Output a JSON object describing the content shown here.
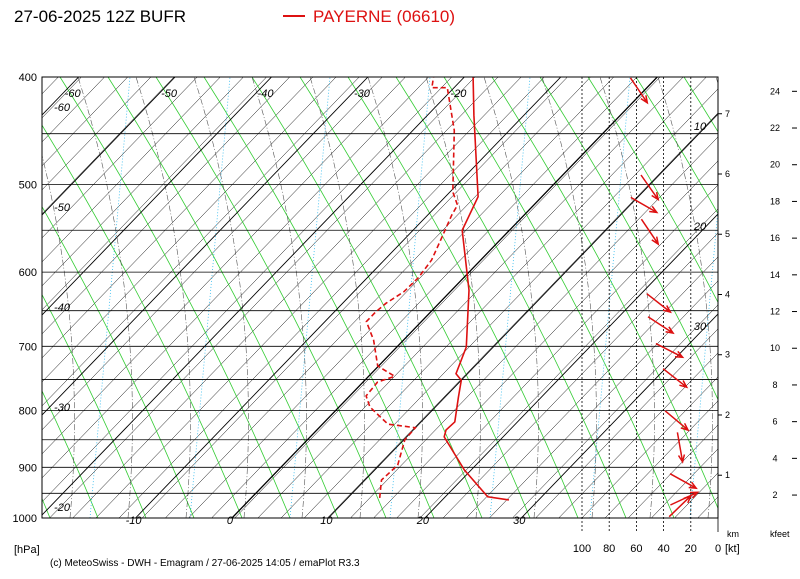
{
  "chart_data": {
    "type": "emagram",
    "title": "27-06-2025 12Z BUFR",
    "footer": "(c) MeteoSwiss - DWH - Emagram / 27-06-2025  14:05 / emaPlot R3.3",
    "y_unit": "[hPa]",
    "wind_unit": "[kt]",
    "km_label": "km",
    "kft_label": "kfeet",
    "log_y": true,
    "ylim": [
      1000,
      400
    ],
    "yticks": [
      400,
      500,
      600,
      700,
      800,
      900,
      1000
    ],
    "ygrid": [
      400,
      450,
      500,
      550,
      600,
      650,
      700,
      750,
      800,
      850,
      900,
      950,
      1000
    ],
    "xlim": [
      -19.7,
      50.4
    ],
    "skew_degC": 44.1,
    "xticks": [
      -60,
      -50,
      -40,
      -30,
      -20,
      -10,
      0,
      10,
      20,
      30
    ],
    "isotherm_labels": {
      "bottom": [
        -10,
        0,
        10,
        20,
        30
      ],
      "top": [
        -60,
        -50,
        -40,
        -30,
        -20
      ],
      "left": [
        -60,
        -50,
        -40,
        -30,
        -20
      ],
      "right": [
        10,
        20,
        30
      ]
    },
    "series": [
      {
        "name": "PAYERNE (06610)",
        "color": "#dd1111",
        "style": "solid",
        "pressure": [
          963,
          957,
          905,
          845,
          833,
          819,
          778,
          751,
          741,
          701,
          623,
          550,
          513,
          433,
          400
        ],
        "values": [
          26.9,
          24.4,
          19.3,
          13.9,
          13.4,
          13.5,
          11.4,
          10.0,
          8.8,
          7.2,
          1.8,
          -4.9,
          -6.6,
          -15.2,
          -19.1
        ]
      },
      {
        "color": "#dd1111",
        "style": "dashed",
        "pressure": [
          959,
          924,
          896,
          850,
          829,
          823,
          794,
          776,
          754,
          745,
          729,
          691,
          665,
          652,
          640,
          625,
          607,
          585,
          556,
          533,
          522,
          508,
          447,
          409,
          409,
          400
        ],
        "values": [
          13.3,
          11.7,
          11.9,
          10.1,
          10.0,
          6.8,
          3.2,
          1.7,
          1.5,
          2.7,
          -0.1,
          -3.1,
          -5.7,
          -5.7,
          -5.5,
          -4.8,
          -4.7,
          -5.1,
          -6.4,
          -7.5,
          -7.9,
          -9.7,
          -15.7,
          -20.7,
          -22.3,
          -23.2
        ]
      }
    ],
    "wind": {
      "color": "#dd1111",
      "pressure": [
        422,
        516,
        530,
        566,
        652,
        681,
        716,
        762,
        833,
        890,
        940,
        948,
        955
      ],
      "speed": [
        52,
        44,
        45,
        44,
        35,
        33,
        26,
        23,
        22,
        26,
        16,
        15,
        20
      ],
      "direction": [
        326,
        325,
        300,
        326,
        308,
        303,
        297,
        308,
        310,
        350,
        299,
        245,
        226
      ]
    },
    "wind_xlim": [
      100,
      0
    ],
    "wind_ticks": [
      100,
      80,
      60,
      40,
      20,
      0
    ],
    "km_ticks": [
      1,
      2,
      3,
      4,
      5,
      6,
      7
    ],
    "kmlim": [
      0.29,
      7.61
    ],
    "kft_ticks": [
      2,
      4,
      6,
      8,
      10,
      12,
      14,
      16,
      18,
      20,
      22,
      24
    ],
    "kftlim": [
      0.75,
      24.78
    ]
  }
}
